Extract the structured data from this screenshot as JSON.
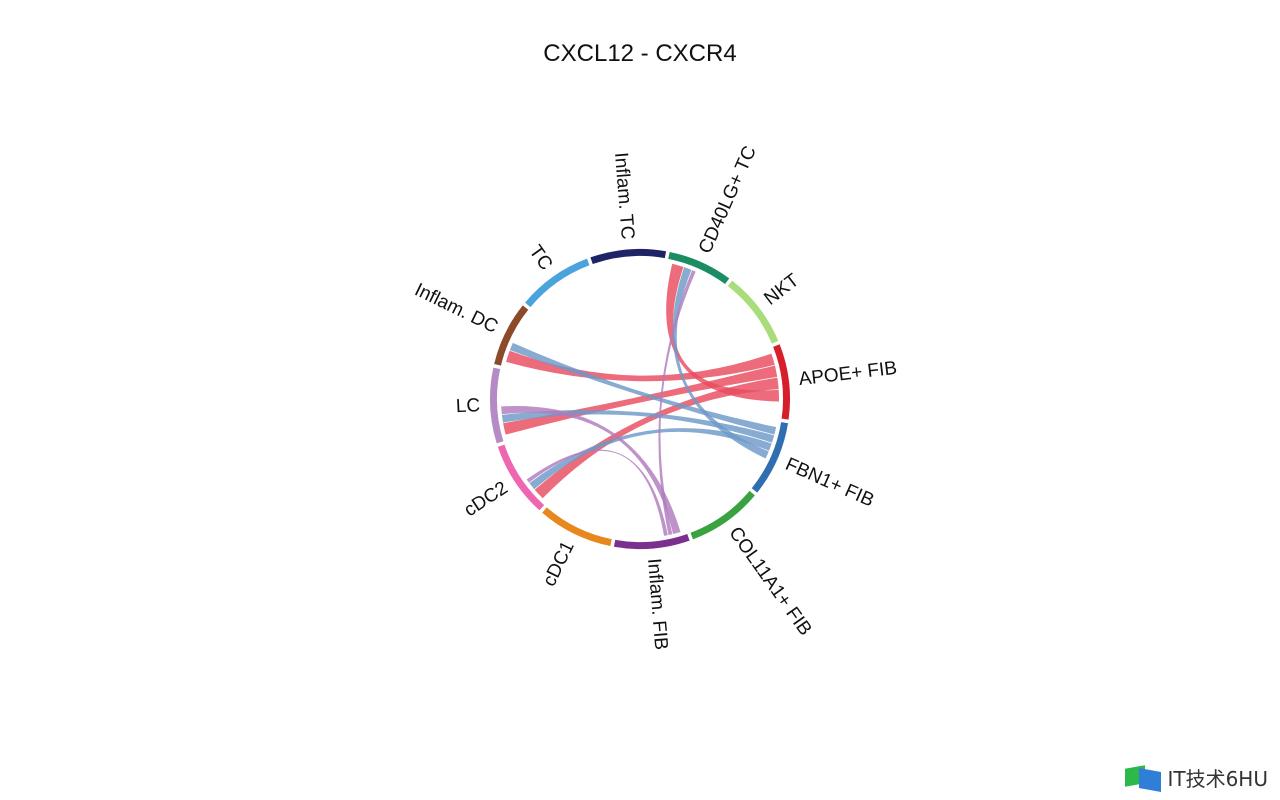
{
  "chart_data": {
    "type": "chord",
    "title": "CXCL12 - CXCR4",
    "segments": [
      {
        "name": "TC",
        "color": "#4aa3dc",
        "size": 7
      },
      {
        "name": "Inflam. TC",
        "color": "#1e2266",
        "size": 7
      },
      {
        "name": "CD40LG+ TC",
        "color": "#1c8c63",
        "size": 6
      },
      {
        "name": "NKT",
        "color": "#a9dc7a",
        "size": 7
      },
      {
        "name": "APOE+ FIB",
        "color": "#d71f2c",
        "size": 7
      },
      {
        "name": "FBN1+ FIB",
        "color": "#2f6fb0",
        "size": 7
      },
      {
        "name": "COL11A1+ FIB",
        "color": "#3aa23f",
        "size": 7
      },
      {
        "name": "Inflam. FIB",
        "color": "#7b2f8f",
        "size": 7
      },
      {
        "name": "cDC1",
        "color": "#e8871e",
        "size": 7
      },
      {
        "name": "cDC2",
        "color": "#ee66b0",
        "size": 7
      },
      {
        "name": "LC",
        "color": "#b48bc4",
        "size": 7
      },
      {
        "name": "Inflam. DC",
        "color": "#8b4a2a",
        "size": 6
      }
    ],
    "links": [
      {
        "from": "APOE+ FIB",
        "to": "Inflam. DC",
        "value": 3,
        "color": "#e84c5e"
      },
      {
        "from": "APOE+ FIB",
        "to": "LC",
        "value": 3,
        "color": "#e84c5e"
      },
      {
        "from": "APOE+ FIB",
        "to": "cDC2",
        "value": 3,
        "color": "#e84c5e"
      },
      {
        "from": "APOE+ FIB",
        "to": "CD40LG+ TC",
        "value": 3,
        "color": "#e84c5e"
      },
      {
        "from": "FBN1+ FIB",
        "to": "Inflam. DC",
        "value": 2,
        "color": "#6e98c8"
      },
      {
        "from": "FBN1+ FIB",
        "to": "LC",
        "value": 2,
        "color": "#6e98c8"
      },
      {
        "from": "FBN1+ FIB",
        "to": "cDC2",
        "value": 2,
        "color": "#6e98c8"
      },
      {
        "from": "FBN1+ FIB",
        "to": "CD40LG+ TC",
        "value": 2,
        "color": "#6e98c8"
      },
      {
        "from": "Inflam. FIB",
        "to": "LC",
        "value": 2,
        "color": "#b07bbd"
      },
      {
        "from": "Inflam. FIB",
        "to": "CD40LG+ TC",
        "value": 1,
        "color": "#b07bbd"
      },
      {
        "from": "Inflam. FIB",
        "to": "cDC2",
        "value": 1,
        "color": "#b07bbd"
      }
    ]
  },
  "watermark": {
    "text": "IT技术6HU"
  }
}
